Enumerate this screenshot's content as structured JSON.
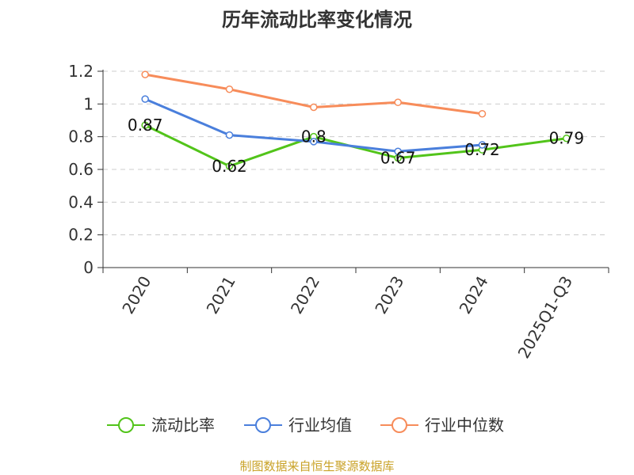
{
  "chart_data": {
    "type": "line",
    "title": "历年流动比率变化情况",
    "categories": [
      "2020",
      "2021",
      "2022",
      "2023",
      "2024",
      "2025Q1-Q3"
    ],
    "ylim": [
      0,
      1.2
    ],
    "yticks": [
      "0",
      "0.2",
      "0.4",
      "0.6",
      "0.8",
      "1",
      "1.2"
    ],
    "grid": true,
    "legend_position": "bottom",
    "series": [
      {
        "name": "流动比率",
        "color": "#52c41a",
        "values": [
          0.87,
          0.62,
          0.8,
          0.67,
          0.72,
          0.79
        ],
        "labels": [
          "0.87",
          "0.62",
          "0.8",
          "0.67",
          "0.72",
          "0.79"
        ]
      },
      {
        "name": "行业均值",
        "color": "#4a7fdc",
        "values": [
          1.03,
          0.81,
          0.77,
          0.71,
          0.75,
          null
        ]
      },
      {
        "name": "行业中位数",
        "color": "#f78c5a",
        "values": [
          1.18,
          1.09,
          0.98,
          1.01,
          0.94,
          null
        ]
      }
    ]
  },
  "source": "制图数据来自恒生聚源数据库"
}
